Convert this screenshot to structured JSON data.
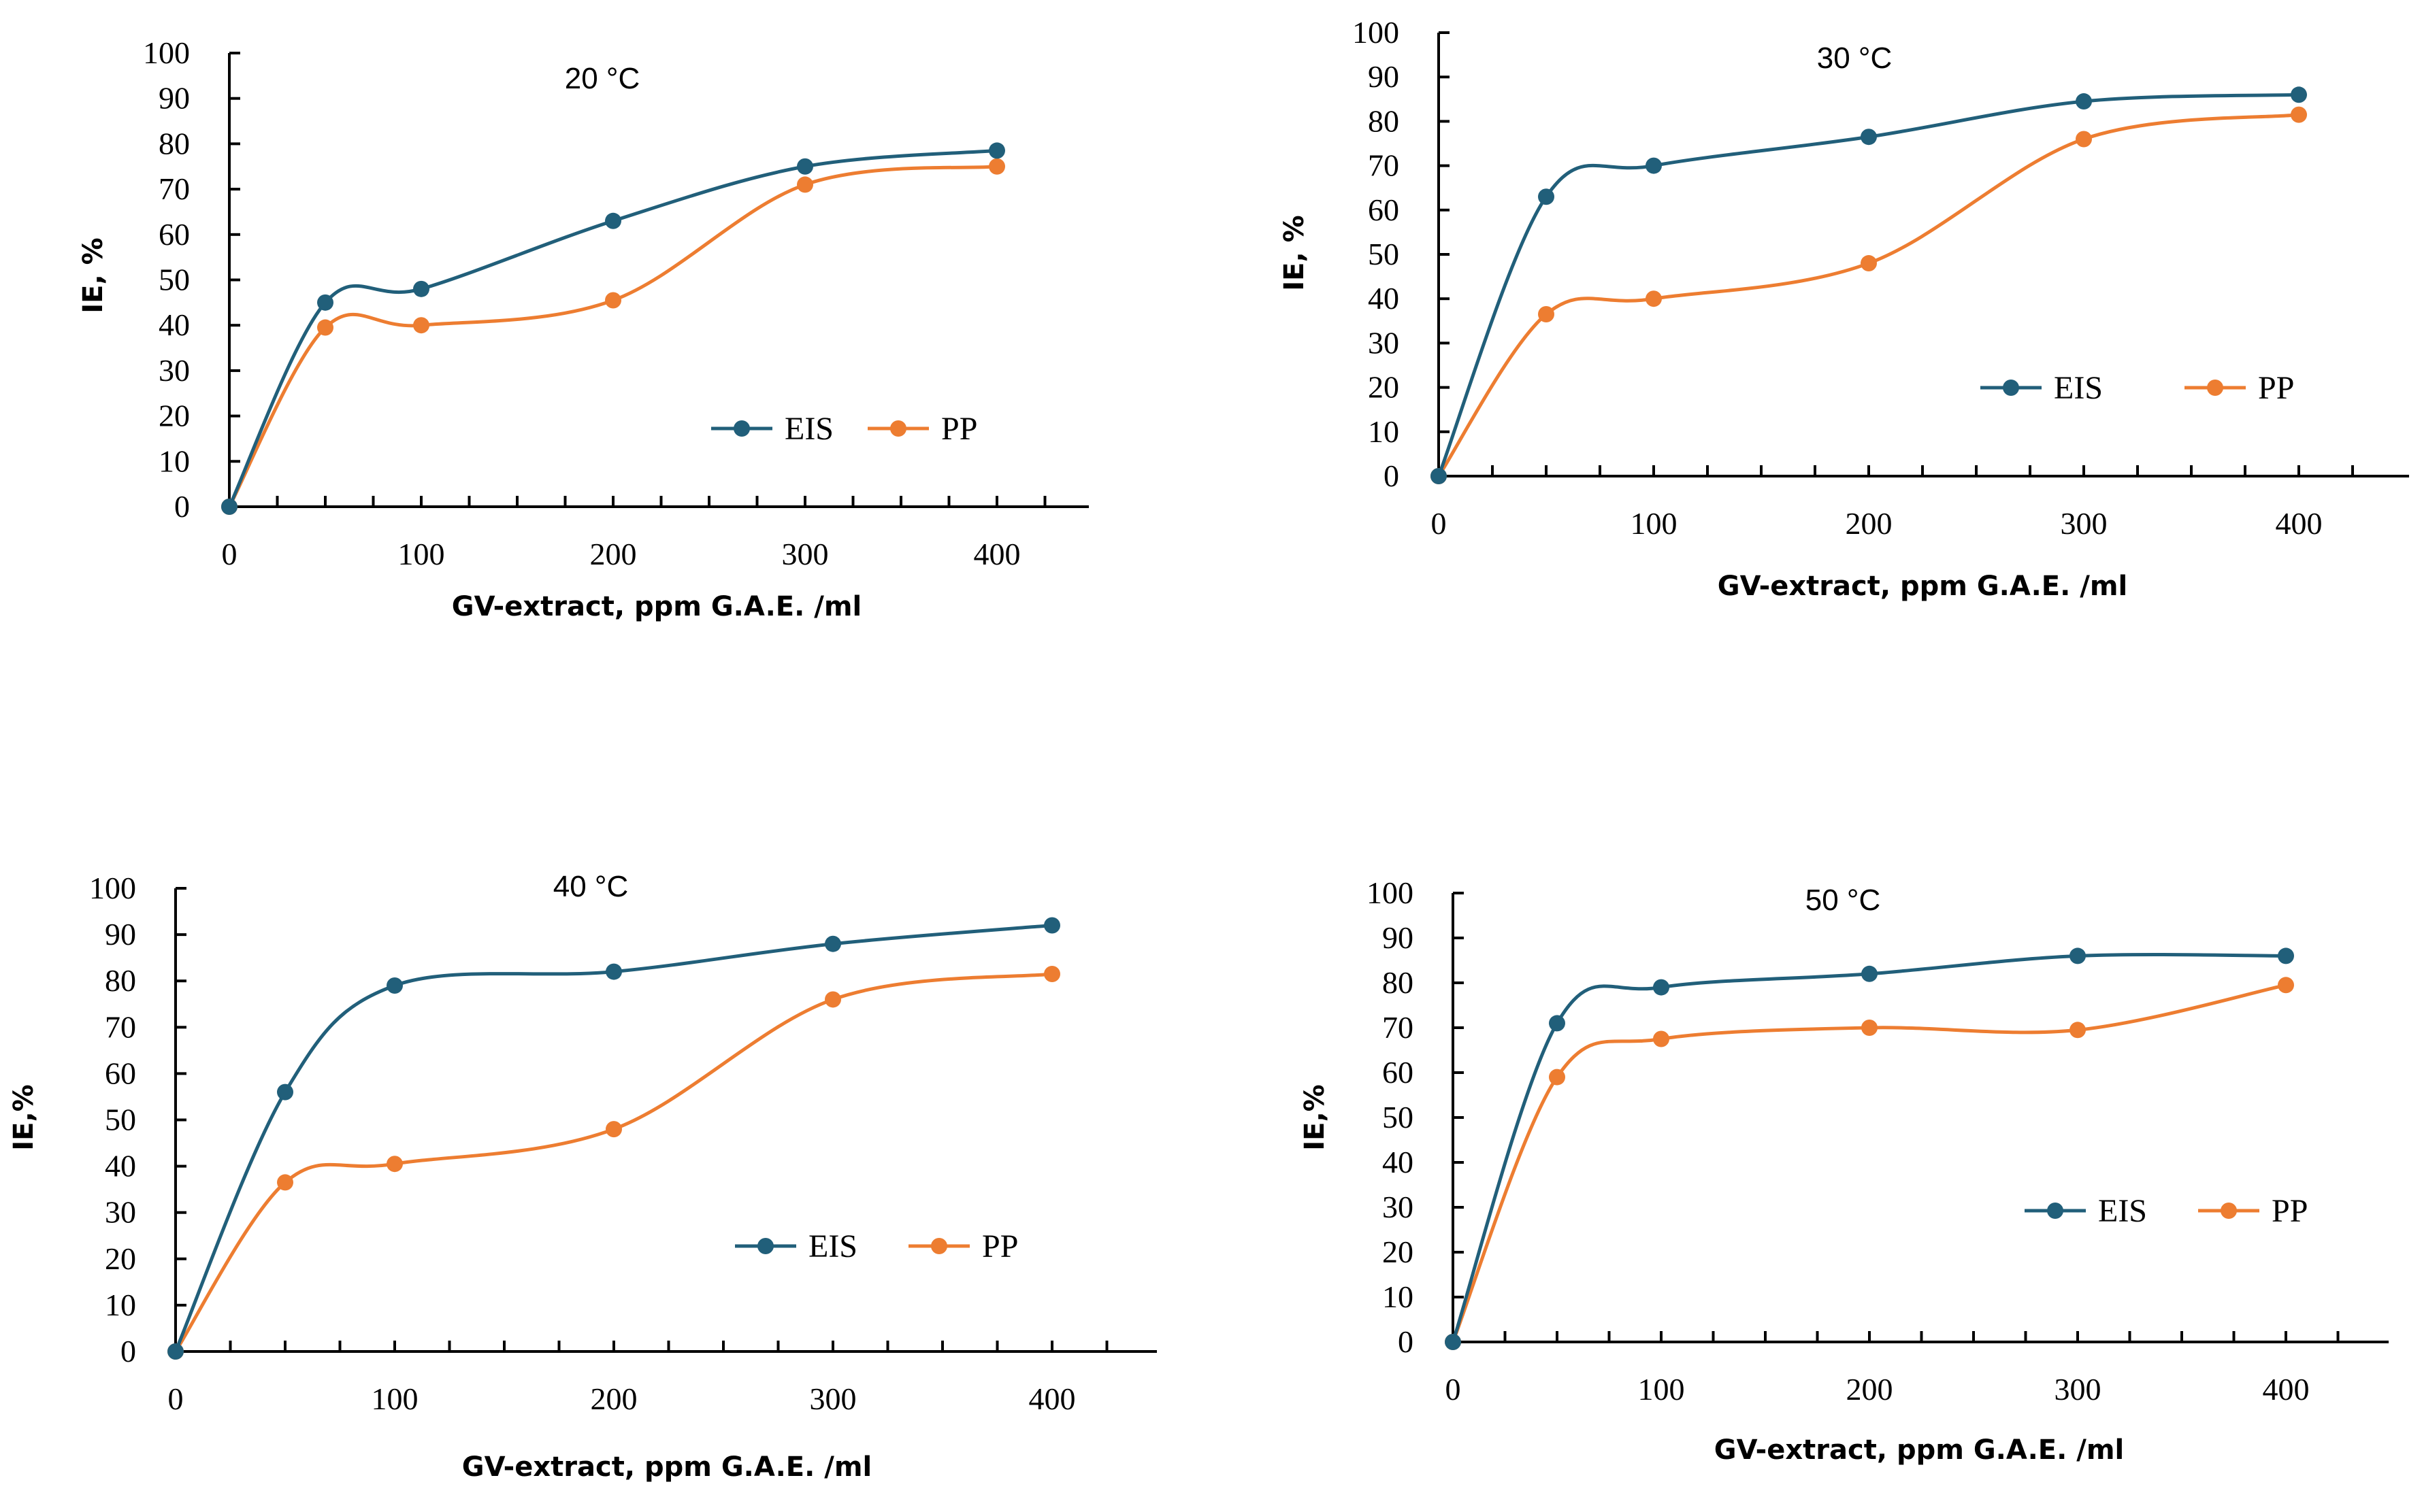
{
  "chart_data": [
    {
      "type": "line",
      "title": "20 °C",
      "xlabel": "GV-extract, ppm G.A.E. /ml",
      "ylabel": "IE, %",
      "x": [
        0,
        50,
        100,
        200,
        300,
        400
      ],
      "xticks": [
        0,
        100,
        200,
        300,
        400
      ],
      "xlim": [
        0,
        450
      ],
      "ylim": [
        0,
        100
      ],
      "yticks": [
        0,
        10,
        20,
        30,
        40,
        50,
        60,
        70,
        80,
        90,
        100
      ],
      "series": [
        {
          "name": "EIS",
          "color": "#215F7A",
          "values": [
            0,
            45,
            48,
            63,
            75,
            78.5
          ]
        },
        {
          "name": "PP",
          "color": "#ED7D31",
          "values": [
            0,
            39.5,
            40,
            45.5,
            71,
            75
          ]
        }
      ],
      "legend": "lower-right"
    },
    {
      "type": "line",
      "title": "30 °C",
      "xlabel": "GV-extract, ppm G.A.E. /ml",
      "ylabel": "IE, %",
      "x": [
        0,
        50,
        100,
        200,
        300,
        400
      ],
      "xticks": [
        0,
        100,
        200,
        300,
        400
      ],
      "xlim": [
        0,
        450
      ],
      "ylim": [
        0,
        100
      ],
      "yticks": [
        0,
        10,
        20,
        30,
        40,
        50,
        60,
        70,
        80,
        90,
        100
      ],
      "series": [
        {
          "name": "EIS",
          "color": "#215F7A",
          "values": [
            0,
            63,
            70,
            76.5,
            84.5,
            86
          ]
        },
        {
          "name": "PP",
          "color": "#ED7D31",
          "values": [
            0,
            36.5,
            40,
            48,
            76,
            81.5
          ]
        }
      ],
      "legend": "lower-right"
    },
    {
      "type": "line",
      "title": "40 °C",
      "xlabel": "GV-extract, ppm G.A.E. /ml",
      "ylabel": "IE,%",
      "x": [
        0,
        50,
        100,
        200,
        300,
        400
      ],
      "xticks": [
        0,
        100,
        200,
        300,
        400
      ],
      "xlim": [
        0,
        450
      ],
      "ylim": [
        0,
        100
      ],
      "yticks": [
        0,
        10,
        20,
        30,
        40,
        50,
        60,
        70,
        80,
        90,
        100
      ],
      "series": [
        {
          "name": "EIS",
          "color": "#215F7A",
          "values": [
            0,
            56,
            79,
            82,
            88,
            92
          ]
        },
        {
          "name": "PP",
          "color": "#ED7D31",
          "values": [
            0,
            36.5,
            40.5,
            48,
            76,
            81.5
          ]
        }
      ],
      "legend": "lower-right"
    },
    {
      "type": "line",
      "title": "50 °C",
      "xlabel": "GV-extract, ppm G.A.E. /ml",
      "ylabel": "IE,%",
      "x": [
        0,
        50,
        100,
        200,
        300,
        400
      ],
      "xticks": [
        0,
        100,
        200,
        300,
        400
      ],
      "xlim": [
        0,
        450
      ],
      "ylim": [
        0,
        100
      ],
      "yticks": [
        0,
        10,
        20,
        30,
        40,
        50,
        60,
        70,
        80,
        90,
        100
      ],
      "series": [
        {
          "name": "EIS",
          "color": "#215F7A",
          "values": [
            0,
            71,
            79,
            82,
            86,
            86
          ]
        },
        {
          "name": "PP",
          "color": "#ED7D31",
          "values": [
            0,
            59,
            67.5,
            70,
            69.5,
            79.5
          ]
        }
      ],
      "legend": "lower-right"
    }
  ]
}
